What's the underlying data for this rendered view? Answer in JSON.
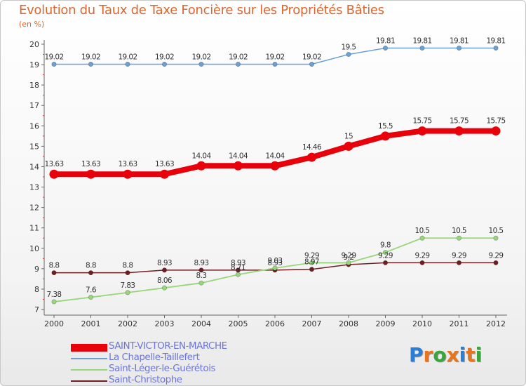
{
  "title": "Evolution du Taux de Taxe Foncière sur les Propriétés Bâties",
  "unit_label": "(en %)",
  "brand": "Proxiti",
  "chart_data": {
    "type": "line",
    "x": [
      "2000",
      "2001",
      "2002",
      "2003",
      "2004",
      "2005",
      "2006",
      "2007",
      "2008",
      "2009",
      "2010",
      "2011",
      "2012"
    ],
    "ylim": [
      7,
      20
    ],
    "yticks": [
      7,
      8,
      9,
      10,
      11,
      12,
      13,
      14,
      15,
      16,
      17,
      18,
      19,
      20
    ],
    "grid": false,
    "legend": "bottom-left",
    "series": [
      {
        "name": "SAINT-VICTOR-EN-MARCHE",
        "color": "#e8000a",
        "values": [
          13.63,
          13.63,
          13.63,
          13.63,
          14.04,
          14.04,
          14.04,
          14.46,
          15,
          15.5,
          15.75,
          15.75,
          15.75
        ],
        "labels": [
          "13.63",
          "13.63",
          "13.63",
          "13.63",
          "14.04",
          "14.04",
          "14.04",
          "14.46",
          "15",
          "15.5",
          "15.75",
          "15.75",
          "15.75"
        ]
      },
      {
        "name": "La Chapelle-Taillefert",
        "color": "#6aa0d4",
        "values": [
          19.02,
          19.02,
          19.02,
          19.02,
          19.02,
          19.02,
          19.02,
          19.02,
          19.5,
          19.81,
          19.81,
          19.81,
          19.81
        ],
        "labels": [
          "19.02",
          "19.02",
          "19.02",
          "19.02",
          "19.02",
          "19.02",
          "19.02",
          "19.02",
          "19.5",
          "19.81",
          "19.81",
          "19.81",
          "19.81"
        ]
      },
      {
        "name": "Saint-Léger-le-Guérétois",
        "color": "#98d67a",
        "values": [
          7.38,
          7.6,
          7.83,
          8.06,
          8.3,
          8.71,
          9.03,
          9.29,
          9.29,
          9.8,
          10.5,
          10.5,
          10.5
        ],
        "labels": [
          "7.38",
          "7.6",
          "7.83",
          "8.06",
          "8.3",
          "8.71",
          "9.03",
          "9.29",
          "9.29",
          "9.8",
          "10.5",
          "10.5",
          "10.5"
        ]
      },
      {
        "name": "Saint-Christophe",
        "color": "#6e1f24",
        "values": [
          8.8,
          8.8,
          8.8,
          8.93,
          8.93,
          8.93,
          8.93,
          8.97,
          9.2,
          9.29,
          9.29,
          9.29,
          9.29
        ],
        "labels": [
          "8.8",
          "8.8",
          "8.8",
          "8.93",
          "8.93",
          "8.93",
          "8.93",
          "8.97",
          "9.2",
          "9.29",
          "9.29",
          "9.29",
          "9.29"
        ]
      }
    ]
  }
}
